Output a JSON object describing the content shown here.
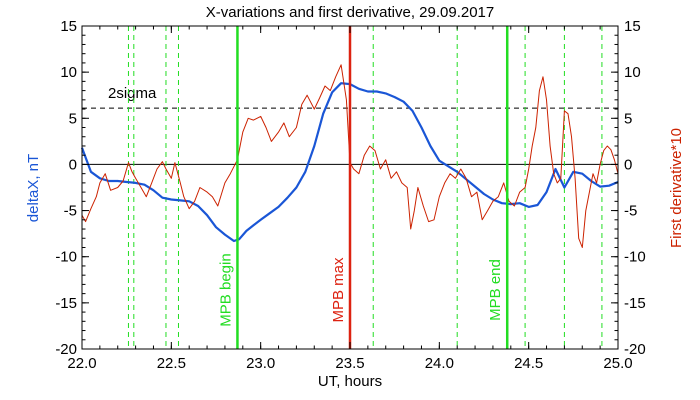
{
  "chart_data": {
    "type": "line",
    "title": "X-variations and first derivative, 29.09.2017",
    "xlabel": "UT, hours",
    "ylabel_left": "deltaX, nT",
    "ylabel_right": "First derivative*10",
    "xlim": [
      22.0,
      25.0
    ],
    "ylim": [
      -20,
      15
    ],
    "x_ticks": [
      "22.0",
      "22.5",
      "23.0",
      "23.5",
      "24.0",
      "24.5",
      "25.0"
    ],
    "y_ticks": [
      "15",
      "10",
      "5",
      "0",
      "-5",
      "-10",
      "-15",
      "-20"
    ],
    "colors": {
      "deltaX": "#1a56d6",
      "derivative": "#cc2200",
      "mpb": "#22dd22",
      "max": "#dd2211",
      "axes": "#000000"
    },
    "zero_line": 0,
    "sigma_line": {
      "label": "2sigma",
      "y": 6.1
    },
    "dashed_verticals": [
      22.26,
      22.29,
      22.47,
      22.54,
      23.63,
      24.1,
      24.48,
      24.7,
      24.91
    ],
    "markers": [
      {
        "label": "MPB begin",
        "x": 22.87,
        "color": "#22dd22"
      },
      {
        "label": "MPB max",
        "x": 23.5,
        "color": "#dd2211"
      },
      {
        "label": "MPB end",
        "x": 24.38,
        "color": "#22dd22"
      }
    ],
    "series": [
      {
        "name": "deltaX",
        "x": [
          22.0,
          22.05,
          22.1,
          22.15,
          22.2,
          22.25,
          22.3,
          22.35,
          22.4,
          22.45,
          22.5,
          22.55,
          22.6,
          22.65,
          22.7,
          22.75,
          22.8,
          22.85,
          22.88,
          22.92,
          22.96,
          23.0,
          23.05,
          23.1,
          23.15,
          23.2,
          23.25,
          23.3,
          23.35,
          23.4,
          23.45,
          23.5,
          23.55,
          23.6,
          23.65,
          23.7,
          23.75,
          23.8,
          23.85,
          23.9,
          23.95,
          24.0,
          24.05,
          24.1,
          24.15,
          24.2,
          24.25,
          24.3,
          24.35,
          24.4,
          24.45,
          24.5,
          24.55,
          24.6,
          24.65,
          24.7,
          24.75,
          24.8,
          24.85,
          24.9,
          24.95,
          25.0
        ],
        "y": [
          1.8,
          -0.8,
          -1.5,
          -1.8,
          -1.8,
          -1.9,
          -2.0,
          -2.2,
          -2.8,
          -3.6,
          -3.8,
          -3.9,
          -4.0,
          -4.5,
          -5.5,
          -6.8,
          -7.6,
          -8.3,
          -8.1,
          -7.2,
          -6.6,
          -6.0,
          -5.3,
          -4.6,
          -3.6,
          -2.5,
          -0.8,
          2.0,
          5.5,
          7.8,
          8.8,
          8.7,
          8.2,
          7.9,
          7.9,
          7.7,
          7.3,
          6.8,
          5.8,
          4.0,
          2.0,
          0.4,
          -0.2,
          -0.8,
          -1.6,
          -2.4,
          -3.2,
          -3.8,
          -4.2,
          -4.3,
          -4.2,
          -4.6,
          -4.4,
          -3.0,
          -0.5,
          -2.5,
          -0.8,
          -1.0,
          -1.8,
          -2.4,
          -2.3,
          -1.9
        ]
      },
      {
        "name": "First derivative*10",
        "x": [
          22.0,
          22.02,
          22.05,
          22.08,
          22.1,
          22.13,
          22.16,
          22.2,
          22.23,
          22.26,
          22.28,
          22.3,
          22.33,
          22.36,
          22.39,
          22.42,
          22.45,
          22.47,
          22.5,
          22.52,
          22.55,
          22.57,
          22.6,
          22.63,
          22.66,
          22.7,
          22.73,
          22.76,
          22.8,
          22.83,
          22.87,
          22.9,
          22.93,
          22.96,
          23.0,
          23.03,
          23.06,
          23.1,
          23.13,
          23.16,
          23.2,
          23.23,
          23.26,
          23.3,
          23.33,
          23.36,
          23.39,
          23.42,
          23.45,
          23.48,
          23.5,
          23.52,
          23.55,
          23.58,
          23.61,
          23.64,
          23.67,
          23.7,
          23.73,
          23.76,
          23.79,
          23.82,
          23.84,
          23.86,
          23.88,
          23.91,
          23.94,
          23.97,
          24.0,
          24.03,
          24.06,
          24.09,
          24.12,
          24.15,
          24.18,
          24.21,
          24.24,
          24.27,
          24.3,
          24.33,
          24.36,
          24.39,
          24.42,
          24.45,
          24.48,
          24.5,
          24.52,
          24.54,
          24.56,
          24.58,
          24.6,
          24.62,
          24.64,
          24.66,
          24.68,
          24.7,
          24.72,
          24.74,
          24.76,
          24.78,
          24.8,
          24.82,
          24.84,
          24.86,
          24.88,
          24.9,
          24.92,
          24.94,
          24.96,
          24.98,
          25.0
        ],
        "y": [
          -5.5,
          -6.2,
          -4.8,
          -3.5,
          -2.0,
          -1.0,
          -2.8,
          -2.5,
          -1.8,
          0.2,
          -0.8,
          -1.5,
          -2.5,
          -3.5,
          -2.0,
          -0.5,
          0.3,
          -0.5,
          -1.5,
          0.2,
          -2.0,
          -3.5,
          -4.8,
          -4.0,
          -2.5,
          -3.0,
          -3.5,
          -4.5,
          -2.0,
          -1.0,
          0.5,
          3.5,
          5.0,
          4.8,
          5.2,
          4.0,
          2.5,
          3.5,
          4.5,
          3.0,
          4.0,
          6.5,
          7.5,
          6.0,
          7.2,
          8.5,
          8.0,
          9.5,
          10.8,
          7.0,
          0.2,
          -0.5,
          -1.0,
          1.0,
          2.0,
          1.5,
          -0.5,
          0.5,
          -1.5,
          -0.8,
          -2.0,
          -2.5,
          -7.0,
          -5.0,
          -2.5,
          -4.5,
          -6.2,
          -6.0,
          -3.5,
          -2.0,
          -1.0,
          -1.5,
          -0.5,
          -1.5,
          -3.5,
          -3.0,
          -6.0,
          -5.0,
          -4.0,
          -3.5,
          -2.0,
          -4.0,
          -4.5,
          -3.0,
          -2.5,
          -0.5,
          2.0,
          4.0,
          8.0,
          9.5,
          7.0,
          2.0,
          -1.0,
          -2.0,
          -1.5,
          5.8,
          5.5,
          3.0,
          -1.5,
          -8.0,
          -9.0,
          -5.0,
          -3.0,
          -1.0,
          -2.0,
          0.0,
          1.5,
          2.0,
          1.6,
          0.5,
          -1.0
        ]
      }
    ]
  }
}
